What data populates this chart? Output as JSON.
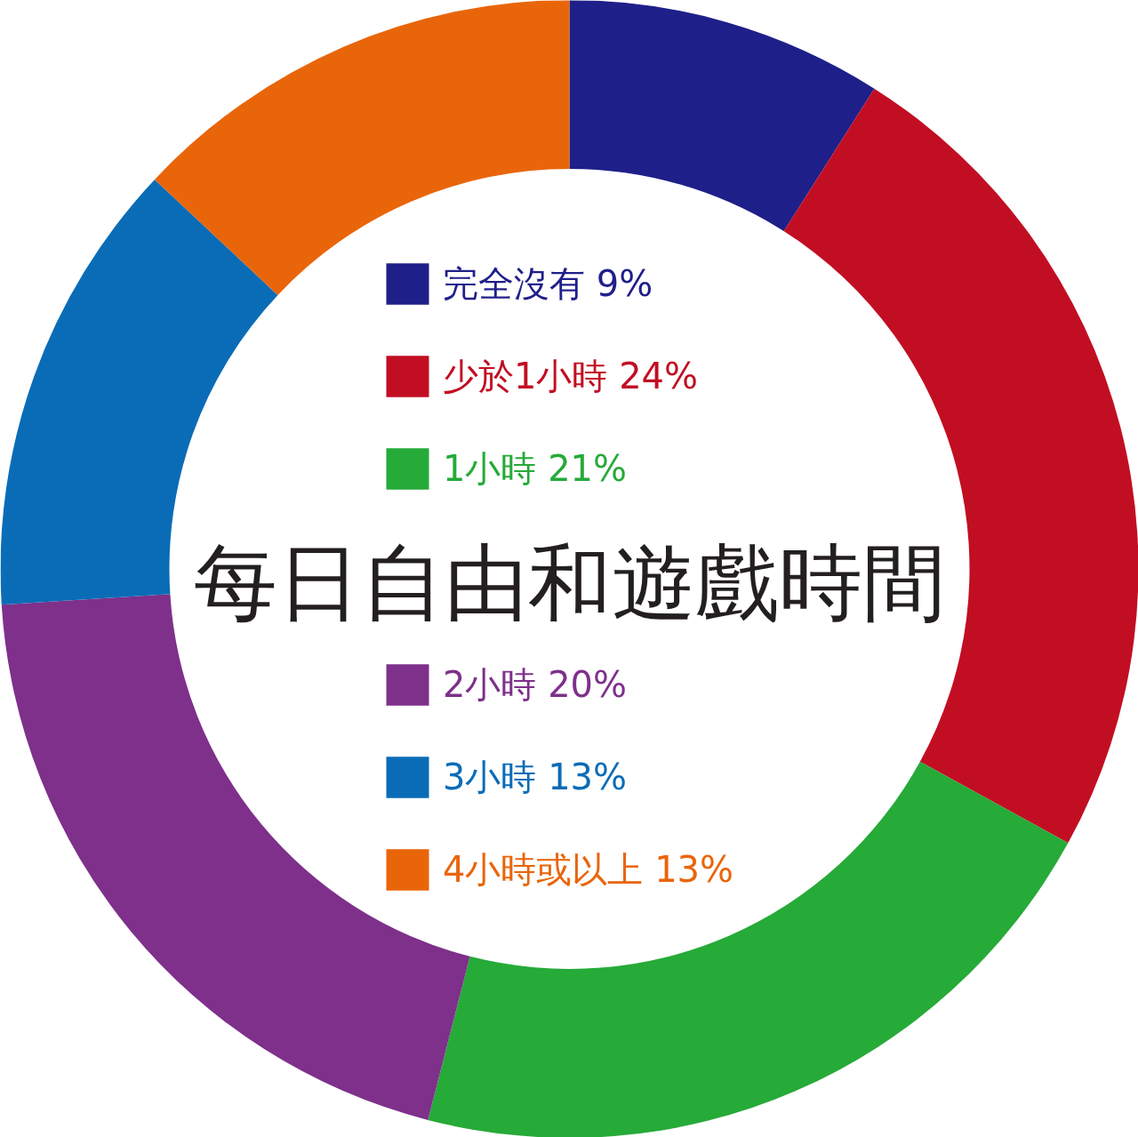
{
  "chart_data": {
    "type": "donut",
    "title": "每日自由和遊戲時間",
    "categories": [
      "完全沒有",
      "少於1小時",
      "1小時",
      "2小時",
      "3小時",
      "4小時或以上"
    ],
    "values": [
      9,
      24,
      21,
      20,
      13,
      13
    ],
    "value_labels": [
      "9%",
      "24%",
      "21%",
      "20%",
      "13%",
      "13%"
    ],
    "colors": [
      "#1f1f8a",
      "#c20e23",
      "#26aa38",
      "#7e308b",
      "#0a6cb7",
      "#e9650a"
    ],
    "legend": "center"
  }
}
